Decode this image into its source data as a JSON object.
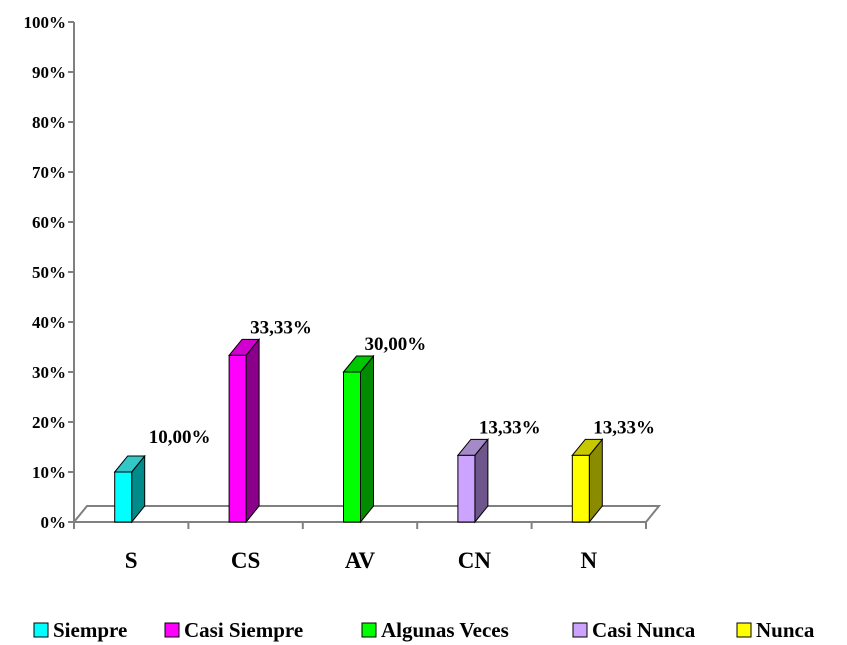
{
  "chart_data": {
    "type": "bar",
    "three_d": true,
    "categories": [
      "S",
      "CS",
      "AV",
      "CN",
      "N"
    ],
    "values": [
      10.0,
      33.33,
      30.0,
      13.33,
      13.33
    ],
    "data_labels": [
      "10,00%",
      "33,33%",
      "30,00%",
      "13,33%",
      "13,33%"
    ],
    "series_names": [
      "Siempre",
      "Casi Siempre",
      "Algunas Veces",
      "Casi Nunca",
      "Nunca"
    ],
    "colors": [
      {
        "front": "#00FFFF",
        "side": "#008B8B",
        "top": "#33C7C7"
      },
      {
        "front": "#FF00FF",
        "side": "#8B008B",
        "top": "#D000D0"
      },
      {
        "front": "#00FF00",
        "side": "#008B00",
        "top": "#00C800"
      },
      {
        "front": "#CCA3FF",
        "side": "#6E558C",
        "top": "#A58AC8"
      },
      {
        "front": "#FFFF00",
        "side": "#8B8B00",
        "top": "#C8C800"
      }
    ],
    "yticks": [
      "0%",
      "10%",
      "20%",
      "30%",
      "40%",
      "50%",
      "60%",
      "70%",
      "80%",
      "90%",
      "100%"
    ],
    "ylim": [
      0,
      100
    ],
    "legend_position": "bottom",
    "grid": false
  }
}
